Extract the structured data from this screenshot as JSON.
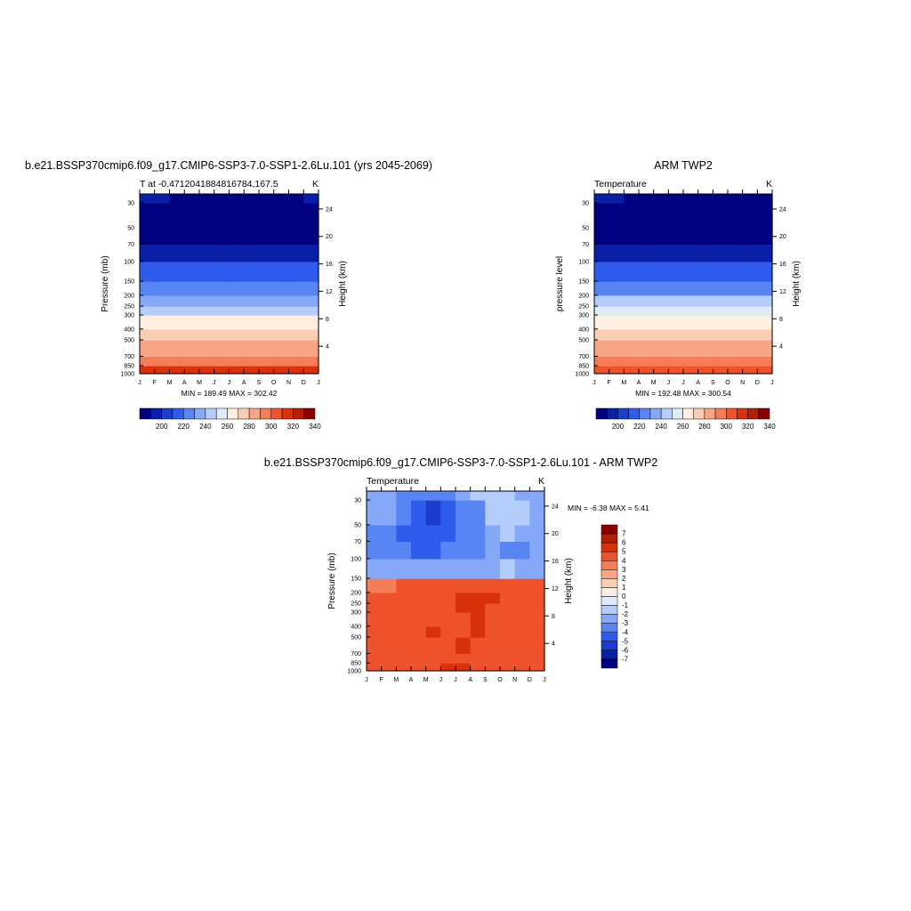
{
  "chart_data": [
    {
      "type": "heatmap",
      "title": "b.e21.BSSP370cmip6.f09_g17.CMIP6-SSP3-7.0-SSP1-2.6Lu.101 (yrs 2045-2069)",
      "subtitle_left": "T at -0.4712041884816784,167.5",
      "subtitle_right": "K",
      "ylabel": "Pressure (mb)",
      "ylabel_right": "Height (km)",
      "stats": "MIN = 189.49 MAX = 302.42",
      "x_ticks": [
        "J",
        "F",
        "M",
        "A",
        "M",
        "J",
        "J",
        "A",
        "S",
        "O",
        "N",
        "D",
        "J"
      ],
      "y_ticks": [
        "30",
        "50",
        "70",
        "100",
        "150",
        "200",
        "250",
        "300",
        "400",
        "500",
        "700",
        "850",
        "1000"
      ],
      "y_ticks_right": [
        "24",
        "20",
        "16",
        "12",
        "8",
        "4"
      ],
      "y_scale": "log",
      "ylim": [
        1000,
        25
      ],
      "colorbar": {
        "orientation": "horizontal",
        "tick_labels": [
          "200",
          "220",
          "240",
          "260",
          "280",
          "300",
          "320",
          "340"
        ],
        "colors": [
          "#000080",
          "#0a1fa8",
          "#1c3ccc",
          "#2f5cec",
          "#5884f4",
          "#86a8f9",
          "#b5cdfb",
          "#dfeafb",
          "#fdf0e2",
          "#fbcdb5",
          "#f8a586",
          "#f57d58",
          "#ef532d",
          "#d9310c",
          "#b31f05",
          "#8b0000"
        ]
      },
      "series": [
        {
          "values": [
            13,
            13,
            13,
            13,
            13,
            13,
            13,
            13,
            13,
            13,
            13,
            13,
            13
          ]
        },
        {
          "values": [
            11,
            11,
            11,
            11,
            11,
            11,
            11,
            11,
            11,
            11,
            11,
            11,
            11
          ]
        },
        {
          "values": [
            10,
            10,
            10,
            10,
            10,
            10,
            10,
            10,
            10,
            10,
            10,
            10,
            10
          ]
        },
        {
          "values": [
            9,
            9,
            9,
            9,
            9,
            9,
            9,
            9,
            9,
            9,
            9,
            9,
            9
          ]
        },
        {
          "values": [
            8,
            8,
            8,
            8,
            8,
            8,
            8,
            8,
            8,
            8,
            8,
            8,
            8
          ]
        },
        {
          "values": [
            6,
            6,
            6,
            6,
            6,
            6,
            6,
            6,
            6,
            6,
            6,
            6,
            6
          ]
        },
        {
          "values": [
            5,
            5,
            5,
            5,
            5,
            5,
            5,
            5,
            5,
            5,
            5,
            5,
            5
          ]
        },
        {
          "values": [
            4,
            4,
            4,
            4,
            4,
            4,
            4,
            4,
            4,
            4,
            4,
            4,
            4
          ]
        },
        {
          "values": [
            3,
            3,
            3,
            3,
            3,
            3,
            3,
            3,
            3,
            3,
            3,
            3,
            3
          ]
        },
        {
          "values": [
            1,
            1,
            1,
            1,
            1,
            1,
            1,
            1,
            1,
            1,
            1,
            1,
            1
          ]
        },
        {
          "values": [
            0,
            0,
            0,
            0,
            0,
            0,
            0,
            0,
            0,
            0,
            0,
            0,
            0
          ]
        },
        {
          "values": [
            0,
            0,
            0,
            0,
            0,
            0,
            0,
            0,
            0,
            0,
            0,
            0,
            0
          ]
        },
        {
          "values": [
            1,
            1,
            0,
            0,
            0,
            0,
            0,
            0,
            0,
            0,
            0,
            1,
            1
          ]
        },
        {
          "values": [
            2,
            2,
            2,
            1,
            1,
            1,
            1,
            1,
            1,
            1,
            2,
            2,
            2
          ]
        }
      ]
    },
    {
      "type": "heatmap",
      "title": "ARM TWP2",
      "subtitle_left": "Temperature",
      "subtitle_right": "K",
      "ylabel": "pressure level",
      "ylabel_right": "Height (km)",
      "stats": "MIN = 192.48 MAX = 300.54",
      "x_ticks": [
        "J",
        "F",
        "M",
        "A",
        "M",
        "J",
        "J",
        "A",
        "S",
        "O",
        "N",
        "D",
        "J"
      ],
      "y_ticks": [
        "30",
        "50",
        "70",
        "100",
        "150",
        "200",
        "250",
        "300",
        "400",
        "500",
        "700",
        "850",
        "1000"
      ],
      "y_ticks_right": [
        "24",
        "20",
        "16",
        "12",
        "8",
        "4"
      ],
      "y_scale": "log",
      "ylim": [
        1000,
        25
      ],
      "colorbar": {
        "orientation": "horizontal",
        "tick_labels": [
          "200",
          "220",
          "240",
          "260",
          "280",
          "300",
          "320",
          "340"
        ],
        "colors": [
          "#000080",
          "#0a1fa8",
          "#1c3ccc",
          "#2f5cec",
          "#5884f4",
          "#86a8f9",
          "#b5cdfb",
          "#dfeafb",
          "#fdf0e2",
          "#fbcdb5",
          "#f8a586",
          "#f57d58",
          "#ef532d",
          "#d9310c",
          "#b31f05",
          "#8b0000"
        ]
      },
      "series": [
        {
          "values": [
            12,
            12,
            12,
            12,
            12,
            12,
            12,
            12,
            12,
            12,
            12,
            12,
            12
          ]
        },
        {
          "values": [
            11,
            11,
            11,
            11,
            11,
            11,
            11,
            11,
            11,
            11,
            11,
            11,
            11
          ]
        },
        {
          "values": [
            10,
            10,
            10,
            10,
            10,
            10,
            10,
            10,
            10,
            10,
            10,
            10,
            10
          ]
        },
        {
          "values": [
            9,
            9,
            9,
            9,
            9,
            9,
            9,
            9,
            9,
            9,
            9,
            9,
            9
          ]
        },
        {
          "values": [
            8,
            8,
            8,
            8,
            8,
            8,
            8,
            8,
            8,
            8,
            8,
            8,
            8
          ]
        },
        {
          "values": [
            7,
            7,
            7,
            7,
            7,
            7,
            7,
            7,
            7,
            7,
            7,
            7,
            7
          ]
        },
        {
          "values": [
            6,
            6,
            6,
            6,
            6,
            6,
            6,
            6,
            6,
            6,
            6,
            6,
            6
          ]
        },
        {
          "values": [
            4,
            4,
            4,
            4,
            4,
            4,
            4,
            4,
            4,
            4,
            4,
            4,
            4
          ]
        },
        {
          "values": [
            3,
            3,
            3,
            3,
            3,
            3,
            3,
            3,
            3,
            3,
            3,
            3,
            3
          ]
        },
        {
          "values": [
            1,
            1,
            1,
            1,
            1,
            1,
            1,
            1,
            1,
            1,
            1,
            1,
            1
          ]
        },
        {
          "values": [
            0,
            0,
            0,
            0,
            0,
            0,
            0,
            0,
            0,
            0,
            0,
            0,
            0
          ]
        },
        {
          "values": [
            0,
            0,
            0,
            0,
            0,
            0,
            0,
            0,
            0,
            0,
            0,
            0,
            0
          ]
        },
        {
          "values": [
            1,
            1,
            0,
            0,
            0,
            0,
            0,
            0,
            0,
            0,
            0,
            0,
            1
          ]
        },
        {
          "values": [
            1,
            1,
            1,
            1,
            1,
            1,
            1,
            1,
            1,
            1,
            1,
            1,
            1
          ]
        }
      ]
    },
    {
      "type": "heatmap",
      "title": "b.e21.BSSP370cmip6.f09_g17.CMIP6-SSP3-7.0-SSP1-2.6Lu.101 - ARM TWP2",
      "subtitle_left": "Temperature",
      "subtitle_right": "K",
      "ylabel": "Pressure (mb)",
      "ylabel_right": "Height (km)",
      "stats": "MIN =  -6.38 MAX =   5.41",
      "x_ticks": [
        "J",
        "F",
        "M",
        "A",
        "M",
        "J",
        "J",
        "A",
        "S",
        "O",
        "N",
        "D",
        "J"
      ],
      "y_ticks": [
        "30",
        "50",
        "70",
        "100",
        "150",
        "200",
        "250",
        "300",
        "400",
        "500",
        "700",
        "850",
        "1000"
      ],
      "y_ticks_right": [
        "24",
        "20",
        "16",
        "12",
        "8",
        "4"
      ],
      "y_scale": "log",
      "ylim": [
        1000,
        25
      ],
      "colorbar": {
        "orientation": "vertical",
        "tick_labels": [
          "7",
          "6",
          "5",
          "4",
          "3",
          "2",
          "1",
          "0",
          "-1",
          "-2",
          "-3",
          "-4",
          "-5",
          "-6",
          "-7"
        ],
        "colors": [
          "#8b0000",
          "#b31f05",
          "#d9310c",
          "#ef532d",
          "#f57d58",
          "#f8a586",
          "#fbcdb5",
          "#fdf0e2",
          "#dfeafb",
          "#b5cdfb",
          "#86a8f9",
          "#5884f4",
          "#2f5cec",
          "#1c3ccc",
          "#0a1fa8",
          "#000080"
        ]
      },
      "series": [
        {
          "values": [
            4,
            4,
            4,
            4,
            4,
            5,
            5,
            4,
            4,
            4,
            4,
            4,
            4
          ]
        },
        {
          "values": [
            4,
            4,
            4,
            4,
            4,
            4,
            4,
            4,
            4,
            4,
            4,
            4,
            4
          ]
        },
        {
          "values": [
            4,
            4,
            4,
            4,
            4,
            4,
            5,
            4,
            4,
            4,
            4,
            4,
            4
          ]
        },
        {
          "values": [
            4,
            4,
            4,
            4,
            5,
            4,
            4,
            5,
            4,
            4,
            4,
            4,
            4
          ]
        },
        {
          "values": [
            4,
            4,
            4,
            4,
            4,
            4,
            4,
            5,
            4,
            4,
            4,
            4,
            4
          ]
        },
        {
          "values": [
            4,
            4,
            4,
            4,
            4,
            4,
            5,
            5,
            4,
            4,
            4,
            4,
            4
          ]
        },
        {
          "values": [
            4,
            4,
            4,
            4,
            4,
            4,
            5,
            5,
            5,
            4,
            4,
            4,
            4
          ]
        },
        {
          "values": [
            3,
            3,
            4,
            4,
            4,
            4,
            4,
            4,
            4,
            4,
            4,
            4,
            3
          ]
        },
        {
          "values": [
            -3,
            -3,
            -3,
            -3,
            -3,
            -3,
            -3,
            -3,
            -3,
            -2,
            -3,
            -3,
            -3
          ]
        },
        {
          "values": [
            -4,
            -4,
            -4,
            -5,
            -5,
            -4,
            -4,
            -4,
            -3,
            -4,
            -4,
            -3,
            -3
          ]
        },
        {
          "values": [
            -4,
            -4,
            -5,
            -5,
            -5,
            -5,
            -4,
            -4,
            -3,
            -2,
            -3,
            -3,
            -3
          ]
        },
        {
          "values": [
            -3,
            -3,
            -4,
            -5,
            -6,
            -5,
            -4,
            -4,
            -2,
            -2,
            -2,
            -3,
            -3
          ]
        },
        {
          "values": [
            -3,
            -3,
            -4,
            -4,
            -4,
            -4,
            -3,
            -2,
            -2,
            -2,
            -3,
            -3,
            -3
          ]
        },
        {
          "values": [
            -3,
            -3,
            -3,
            -3,
            -3,
            -3,
            -2,
            -2,
            -2,
            -2,
            -2,
            -2,
            -3
          ]
        }
      ]
    }
  ]
}
